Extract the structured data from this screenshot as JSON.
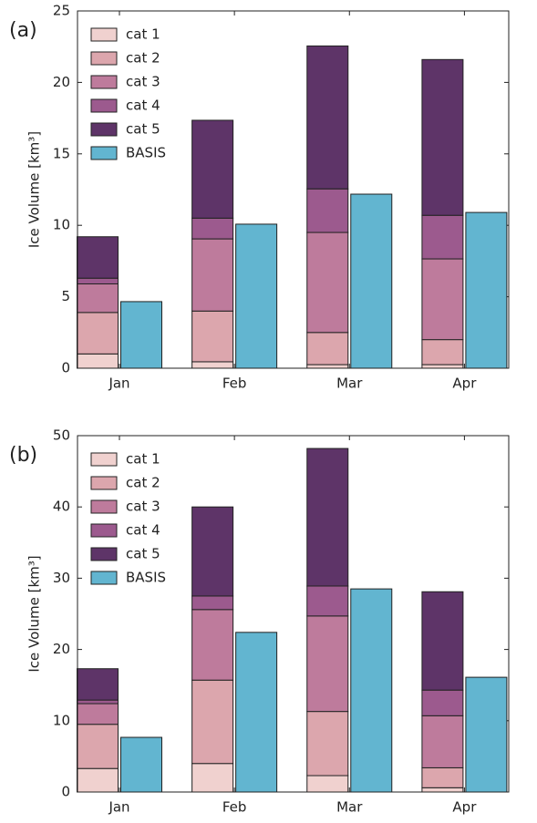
{
  "chart_data": [
    {
      "type": "bar",
      "label": "(a)",
      "ylabel": "Ice Volume [km³]",
      "categories": [
        "Jan",
        "Feb",
        "Mar",
        "Apr"
      ],
      "ylim": [
        0,
        25
      ],
      "yticks": [
        0,
        5,
        10,
        15,
        20,
        25
      ],
      "series": [
        {
          "name": "cat 1",
          "color": "#f0d1cf",
          "stack": 0,
          "values": [
            1.0,
            0.45,
            0.25,
            0.25
          ]
        },
        {
          "name": "cat 2",
          "color": "#dca6ad",
          "stack": 0,
          "values": [
            2.9,
            3.55,
            2.25,
            1.75
          ]
        },
        {
          "name": "cat 3",
          "color": "#be7b9c",
          "stack": 0,
          "values": [
            2.0,
            5.05,
            7.0,
            5.65
          ]
        },
        {
          "name": "cat 4",
          "color": "#9c5a8e",
          "stack": 0,
          "values": [
            0.4,
            1.45,
            3.05,
            3.05
          ]
        },
        {
          "name": "cat 5",
          "color": "#5e3468",
          "stack": 0,
          "values": [
            2.9,
            6.85,
            10.0,
            10.9
          ]
        },
        {
          "name": "BASIS",
          "color": "#62b5d0",
          "stack": 1,
          "values": [
            4.66,
            10.08,
            12.18,
            10.9
          ]
        }
      ]
    },
    {
      "type": "bar",
      "label": "(b)",
      "ylabel": "Ice Volume [km³]",
      "categories": [
        "Jan",
        "Feb",
        "Mar",
        "Apr"
      ],
      "ylim": [
        0,
        50
      ],
      "yticks": [
        0,
        10,
        20,
        30,
        40,
        50
      ],
      "series": [
        {
          "name": "cat 1",
          "color": "#f0d1cf",
          "stack": 0,
          "values": [
            3.3,
            4.0,
            2.3,
            0.6
          ]
        },
        {
          "name": "cat 2",
          "color": "#dca6ad",
          "stack": 0,
          "values": [
            6.2,
            11.7,
            9.0,
            2.8
          ]
        },
        {
          "name": "cat 3",
          "color": "#be7b9c",
          "stack": 0,
          "values": [
            2.9,
            9.9,
            13.4,
            7.3
          ]
        },
        {
          "name": "cat 4",
          "color": "#9c5a8e",
          "stack": 0,
          "values": [
            0.5,
            1.9,
            4.2,
            3.6
          ]
        },
        {
          "name": "cat 5",
          "color": "#5e3468",
          "stack": 0,
          "values": [
            4.4,
            12.5,
            19.3,
            13.8
          ]
        },
        {
          "name": "BASIS",
          "color": "#62b5d0",
          "stack": 1,
          "values": [
            7.67,
            22.4,
            28.5,
            16.1
          ]
        }
      ]
    }
  ]
}
